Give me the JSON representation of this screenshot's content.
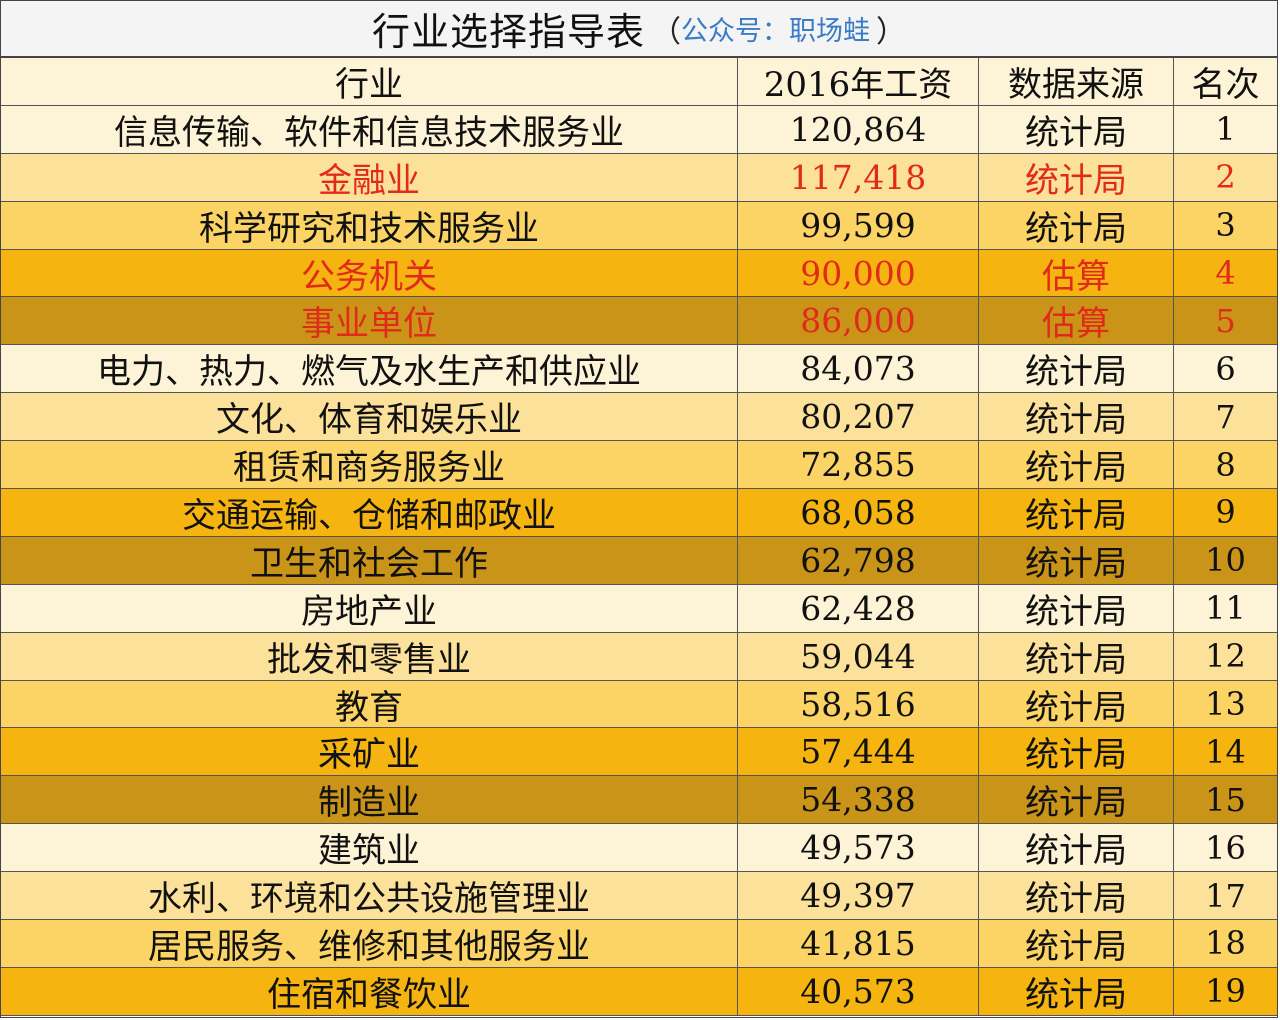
{
  "title": {
    "main": "行业选择指导表",
    "paren_open": "（",
    "sub": "公众号：职场蛙",
    "paren_close": "）"
  },
  "headers": {
    "industry": "行业",
    "wage": "2016年工资",
    "source": "数据来源",
    "rank": "名次"
  },
  "colors": {
    "highlight_text": "#e22a1a",
    "band_1": "#fdf3d6",
    "band_2": "#fbe19a",
    "band_3": "#fbd465",
    "band_4": "#f5b40f",
    "band_5": "#c99418"
  },
  "rows": [
    {
      "industry": "信息传输、软件和信息技术服务业",
      "wage": "120,864",
      "source": "统计局",
      "rank": "1",
      "band": 1,
      "highlight": false
    },
    {
      "industry": "金融业",
      "wage": "117,418",
      "source": "统计局",
      "rank": "2",
      "band": 2,
      "highlight": true
    },
    {
      "industry": "科学研究和技术服务业",
      "wage": "99,599",
      "source": "统计局",
      "rank": "3",
      "band": 3,
      "highlight": false
    },
    {
      "industry": "公务机关",
      "wage": "90,000",
      "source": "估算",
      "rank": "4",
      "band": 4,
      "highlight": true
    },
    {
      "industry": "事业单位",
      "wage": "86,000",
      "source": "估算",
      "rank": "5",
      "band": 5,
      "highlight": true
    },
    {
      "industry": "电力、热力、燃气及水生产和供应业",
      "wage": "84,073",
      "source": "统计局",
      "rank": "6",
      "band": 1,
      "highlight": false
    },
    {
      "industry": "文化、体育和娱乐业",
      "wage": "80,207",
      "source": "统计局",
      "rank": "7",
      "band": 2,
      "highlight": false
    },
    {
      "industry": "租赁和商务服务业",
      "wage": "72,855",
      "source": "统计局",
      "rank": "8",
      "band": 3,
      "highlight": false
    },
    {
      "industry": "交通运输、仓储和邮政业",
      "wage": "68,058",
      "source": "统计局",
      "rank": "9",
      "band": 4,
      "highlight": false
    },
    {
      "industry": "卫生和社会工作",
      "wage": "62,798",
      "source": "统计局",
      "rank": "10",
      "band": 5,
      "highlight": false
    },
    {
      "industry": "房地产业",
      "wage": "62,428",
      "source": "统计局",
      "rank": "11",
      "band": 1,
      "highlight": false
    },
    {
      "industry": "批发和零售业",
      "wage": "59,044",
      "source": "统计局",
      "rank": "12",
      "band": 2,
      "highlight": false
    },
    {
      "industry": "教育",
      "wage": "58,516",
      "source": "统计局",
      "rank": "13",
      "band": 3,
      "highlight": false
    },
    {
      "industry": "采矿业",
      "wage": "57,444",
      "source": "统计局",
      "rank": "14",
      "band": 4,
      "highlight": false
    },
    {
      "industry": "制造业",
      "wage": "54,338",
      "source": "统计局",
      "rank": "15",
      "band": 5,
      "highlight": false
    },
    {
      "industry": "建筑业",
      "wage": "49,573",
      "source": "统计局",
      "rank": "16",
      "band": 1,
      "highlight": false
    },
    {
      "industry": "水利、环境和公共设施管理业",
      "wage": "49,397",
      "source": "统计局",
      "rank": "17",
      "band": 2,
      "highlight": false
    },
    {
      "industry": "居民服务、维修和其他服务业",
      "wage": "41,815",
      "source": "统计局",
      "rank": "18",
      "band": 3,
      "highlight": false
    },
    {
      "industry": "住宿和餐饮业",
      "wage": "40,573",
      "source": "统计局",
      "rank": "19",
      "band": 4,
      "highlight": false
    }
  ]
}
